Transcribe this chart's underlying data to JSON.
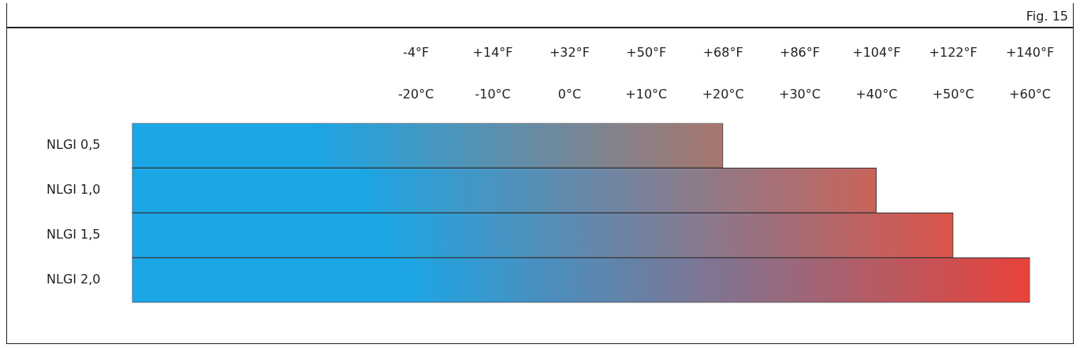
{
  "chart_data": {
    "type": "bar",
    "orientation": "horizontal",
    "title": "Fig. 15",
    "categories": [
      "NLGI 0,5",
      "NLGI 1,0",
      "NLGI 1,5",
      "NLGI 2,0"
    ],
    "series": [
      {
        "color": "#1ba6e6",
        "colors": [
          "#a8766c",
          "#c8645a",
          "#dc5549",
          "#e8423a"
        ],
        "values": [
          77,
          97,
          107,
          117
        ],
        "base": [
          -57,
          -57,
          -57,
          -57
        ]
      }
    ],
    "xlim": [
      -57,
      60
    ],
    "xticks": [
      {
        "value": -20,
        "label": "-20°C"
      },
      {
        "value": -10,
        "label": "-10°C"
      },
      {
        "value": 0,
        "label": "0°C"
      },
      {
        "value": 10,
        "label": "+10°C"
      },
      {
        "value": 20,
        "label": "+20°C"
      },
      {
        "value": 30,
        "label": "+30°C"
      },
      {
        "value": 40,
        "label": "+40°C"
      },
      {
        "value": 50,
        "label": "+50°C"
      },
      {
        "value": 60,
        "label": "+60°C"
      }
    ],
    "x2lim": [
      -70.6,
      140
    ],
    "x2ticks": [
      {
        "value": -4,
        "label": "-4°F"
      },
      {
        "value": 14,
        "label": "+14°F"
      },
      {
        "value": 32,
        "label": "+32°F"
      },
      {
        "value": 50,
        "label": "+50°F"
      },
      {
        "value": 68,
        "label": "+68°F"
      },
      {
        "value": 86,
        "label": "+86°F"
      },
      {
        "value": 104,
        "label": "+104°F"
      },
      {
        "value": 122,
        "label": "+122°F"
      },
      {
        "value": 140,
        "label": "+140°F"
      }
    ],
    "grid": false,
    "legend": false
  }
}
